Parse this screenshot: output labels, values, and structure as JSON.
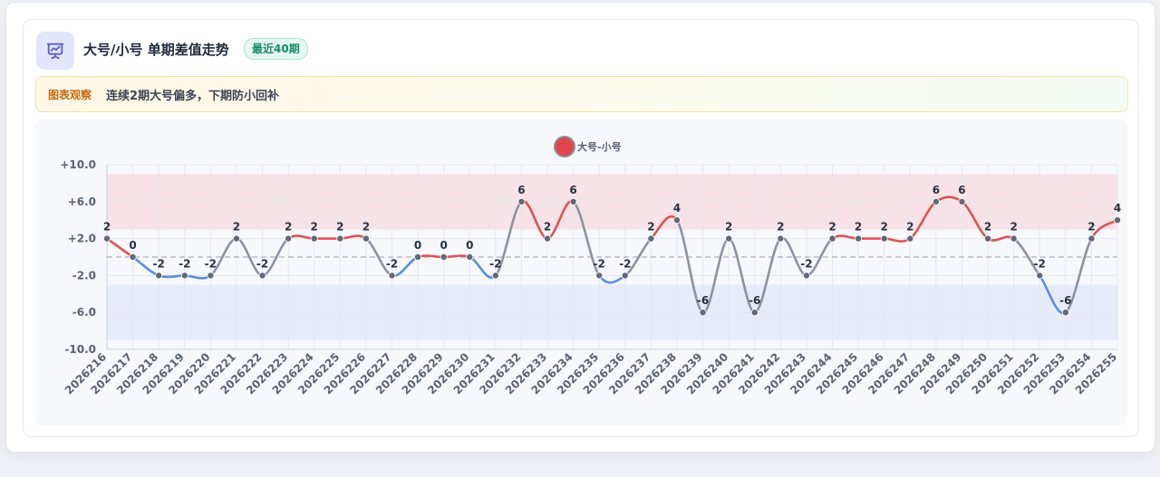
{
  "header": {
    "title": "大号/小号 单期差值走势",
    "badge": "最近40期",
    "icon": "presentation-chart-icon"
  },
  "notice": {
    "label": "图表观察",
    "text": "连续2期大号偏多，下期防小回补"
  },
  "colors": {
    "positive": "#e05252",
    "negative": "#5b8ee0",
    "neutral": "#8c93a0",
    "accent": "#5b5fc7",
    "point": "#616879"
  },
  "chart_data": {
    "type": "line",
    "legend": {
      "label": "大号-小号",
      "position": "top-center"
    },
    "x": [
      "2026216",
      "2026217",
      "2026218",
      "2026219",
      "2026220",
      "2026221",
      "2026222",
      "2026223",
      "2026224",
      "2026225",
      "2026226",
      "2026227",
      "2026228",
      "2026229",
      "2026230",
      "2026231",
      "2026232",
      "2026233",
      "2026234",
      "2026235",
      "2026236",
      "2026237",
      "2026238",
      "2026239",
      "2026240",
      "2026241",
      "2026242",
      "2026243",
      "2026244",
      "2026245",
      "2026246",
      "2026247",
      "2026248",
      "2026249",
      "2026250",
      "2026251",
      "2026252",
      "2026253",
      "2026254",
      "2026255"
    ],
    "series": [
      {
        "name": "大号-小号",
        "values": [
          2,
          0,
          -2,
          -2,
          -2,
          2,
          -2,
          2,
          2,
          2,
          2,
          -2,
          0,
          0,
          0,
          -2,
          6,
          2,
          6,
          -2,
          -2,
          2,
          4,
          -6,
          2,
          -6,
          2,
          -2,
          2,
          2,
          2,
          2,
          6,
          6,
          2,
          2,
          -2,
          -6,
          2,
          4
        ]
      }
    ],
    "ylim": [
      -10,
      10
    ],
    "yticks": [
      {
        "value": 10,
        "label": "+10.0"
      },
      {
        "value": 6,
        "label": "+6.0"
      },
      {
        "value": 2,
        "label": "+2.0"
      },
      {
        "value": -2,
        "label": "-2.0"
      },
      {
        "value": -6,
        "label": "-6.0"
      },
      {
        "value": -10,
        "label": "-10.0"
      }
    ],
    "bands": [
      {
        "from": 3,
        "to": 9,
        "color": "#f7e3e7"
      },
      {
        "from": -9,
        "to": -3,
        "color": "#e6ecf9"
      }
    ],
    "reference_line": 0,
    "grid": true
  }
}
